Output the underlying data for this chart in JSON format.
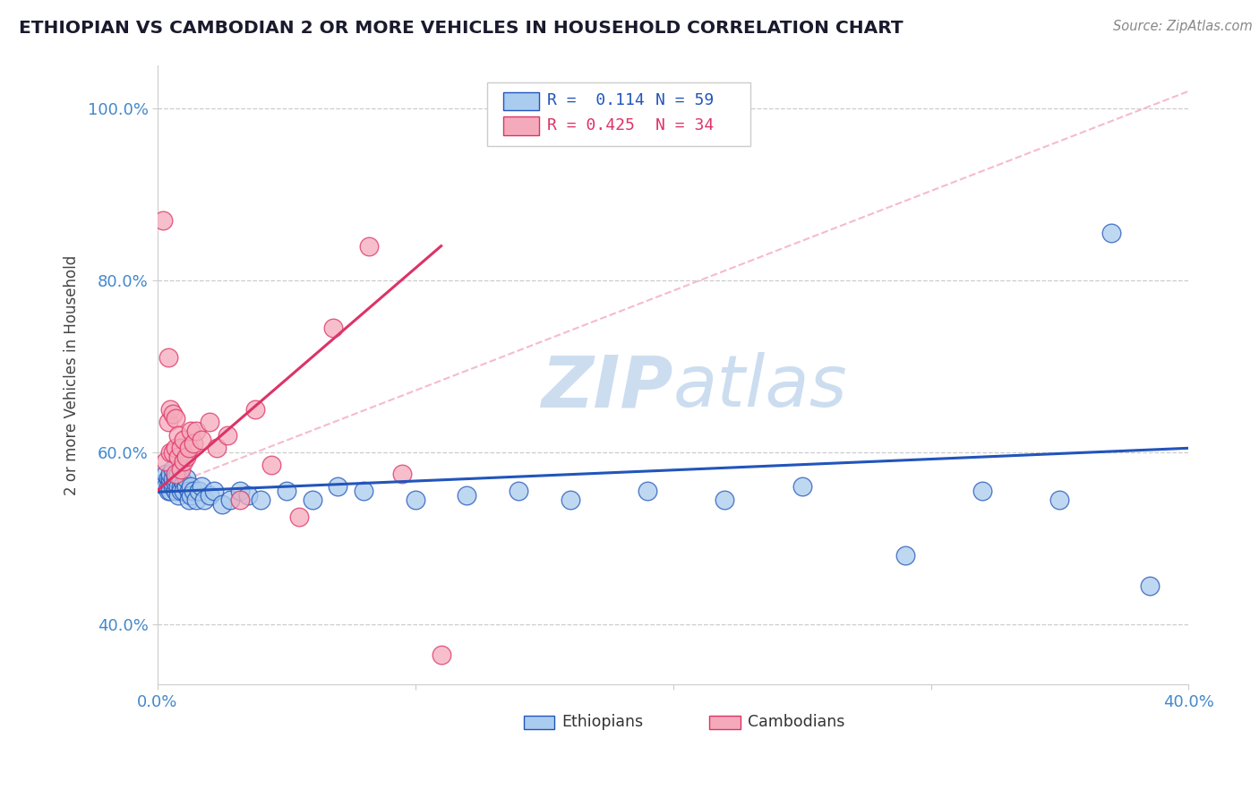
{
  "title": "ETHIOPIAN VS CAMBODIAN 2 OR MORE VEHICLES IN HOUSEHOLD CORRELATION CHART",
  "source_text": "Source: ZipAtlas.com",
  "ylabel": "2 or more Vehicles in Household",
  "xlim": [
    0.0,
    0.4
  ],
  "ylim": [
    0.33,
    1.05
  ],
  "xtick_positions": [
    0.0,
    0.1,
    0.2,
    0.3,
    0.4
  ],
  "xticklabels": [
    "0.0%",
    "",
    "",
    "",
    "40.0%"
  ],
  "ytick_positions": [
    0.4,
    0.6,
    0.8,
    1.0
  ],
  "yticklabels": [
    "40.0%",
    "60.0%",
    "80.0%",
    "100.0%"
  ],
  "ethiopian_R": 0.114,
  "ethiopian_N": 59,
  "cambodian_R": 0.425,
  "cambodian_N": 34,
  "ethiopian_color": "#aaccee",
  "cambodian_color": "#f5aabb",
  "ethiopian_line_color": "#2255bb",
  "cambodian_line_color": "#dd3366",
  "ref_line_color": "#f5bbcc",
  "background_color": "#ffffff",
  "grid_color": "#cccccc",
  "watermark_color": "#ccddf0",
  "ethiopian_x": [
    0.002,
    0.003,
    0.003,
    0.004,
    0.004,
    0.004,
    0.005,
    0.005,
    0.005,
    0.005,
    0.006,
    0.006,
    0.006,
    0.006,
    0.007,
    0.007,
    0.007,
    0.008,
    0.008,
    0.008,
    0.009,
    0.009,
    0.009,
    0.01,
    0.01,
    0.011,
    0.011,
    0.012,
    0.012,
    0.013,
    0.013,
    0.014,
    0.015,
    0.016,
    0.017,
    0.018,
    0.02,
    0.022,
    0.025,
    0.028,
    0.032,
    0.035,
    0.04,
    0.05,
    0.06,
    0.07,
    0.08,
    0.1,
    0.12,
    0.14,
    0.16,
    0.19,
    0.22,
    0.25,
    0.29,
    0.32,
    0.35,
    0.37,
    0.385
  ],
  "ethiopian_y": [
    0.565,
    0.575,
    0.56,
    0.57,
    0.56,
    0.555,
    0.565,
    0.57,
    0.555,
    0.575,
    0.56,
    0.565,
    0.57,
    0.58,
    0.555,
    0.565,
    0.57,
    0.56,
    0.55,
    0.575,
    0.56,
    0.555,
    0.57,
    0.565,
    0.555,
    0.56,
    0.57,
    0.555,
    0.545,
    0.56,
    0.55,
    0.555,
    0.545,
    0.555,
    0.56,
    0.545,
    0.55,
    0.555,
    0.54,
    0.545,
    0.555,
    0.55,
    0.545,
    0.555,
    0.545,
    0.56,
    0.555,
    0.545,
    0.55,
    0.555,
    0.545,
    0.555,
    0.545,
    0.56,
    0.48,
    0.555,
    0.545,
    0.855,
    0.445
  ],
  "cambodian_x": [
    0.002,
    0.003,
    0.004,
    0.004,
    0.005,
    0.005,
    0.006,
    0.006,
    0.007,
    0.007,
    0.007,
    0.008,
    0.008,
    0.009,
    0.009,
    0.01,
    0.01,
    0.011,
    0.012,
    0.013,
    0.014,
    0.015,
    0.017,
    0.02,
    0.023,
    0.027,
    0.032,
    0.038,
    0.044,
    0.055,
    0.068,
    0.082,
    0.095,
    0.11
  ],
  "cambodian_y": [
    0.87,
    0.59,
    0.635,
    0.71,
    0.6,
    0.65,
    0.6,
    0.645,
    0.605,
    0.64,
    0.575,
    0.595,
    0.62,
    0.58,
    0.605,
    0.59,
    0.615,
    0.595,
    0.605,
    0.625,
    0.61,
    0.625,
    0.615,
    0.635,
    0.605,
    0.62,
    0.545,
    0.65,
    0.585,
    0.525,
    0.745,
    0.84,
    0.575,
    0.365
  ],
  "eth_line_x": [
    0.0,
    0.4
  ],
  "eth_line_y": [
    0.554,
    0.605
  ],
  "cam_line_x": [
    0.0,
    0.11
  ],
  "cam_line_y": [
    0.556,
    0.84
  ],
  "ref_line_x": [
    0.0,
    0.4
  ],
  "ref_line_y": [
    0.556,
    1.02
  ],
  "legend_R_eth": "R =  0.114",
  "legend_N_eth": "N = 59",
  "legend_R_cam": "R = 0.425",
  "legend_N_cam": "N = 34"
}
